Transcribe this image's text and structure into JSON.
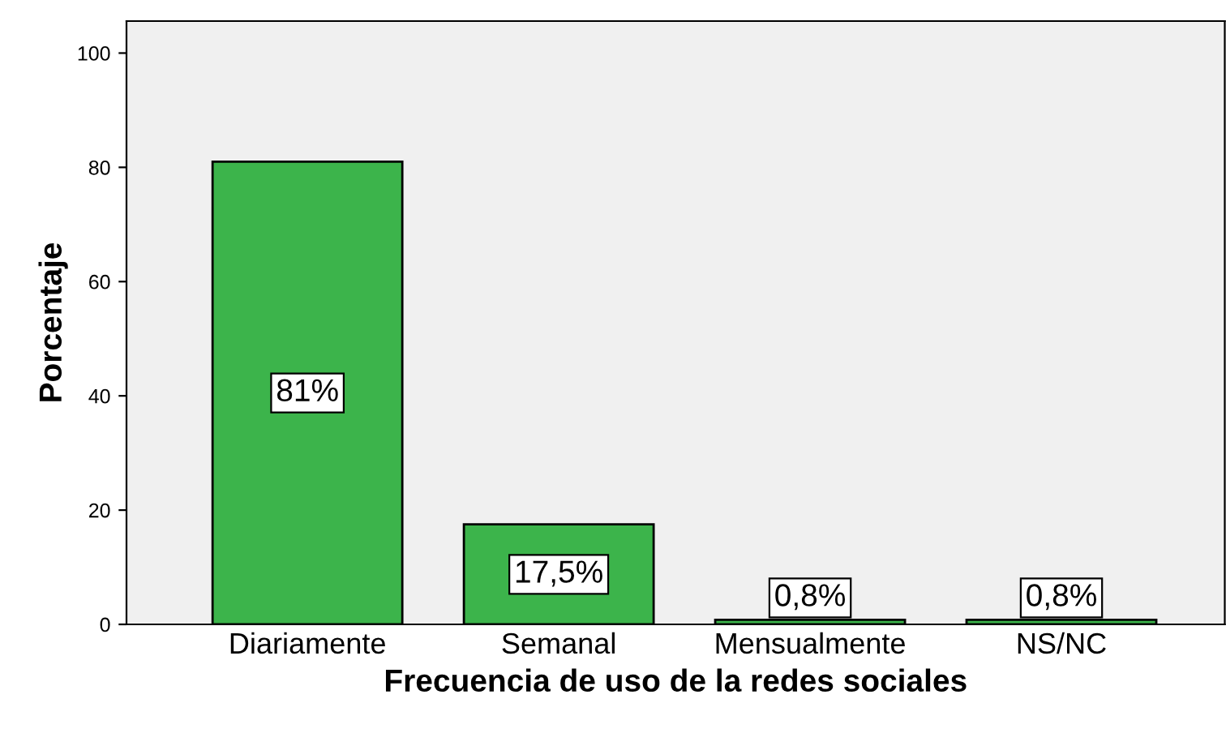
{
  "chart_data": {
    "type": "bar",
    "xlabel": "Frecuencia de uso de la redes sociales",
    "ylabel": "Porcentaje",
    "categories": [
      "Diariamente",
      "Semanal",
      "Mensualmente",
      "NS/NC"
    ],
    "values": [
      81,
      17.5,
      0.8,
      0.8
    ],
    "color": "#3cb44b",
    "value_labels": [
      "81%",
      "17,5%",
      "0,8%",
      "0,8%"
    ],
    "ylim": [
      0,
      105.6
    ],
    "yticks": [
      0,
      20,
      40,
      60,
      80,
      100
    ],
    "grid": false
  }
}
